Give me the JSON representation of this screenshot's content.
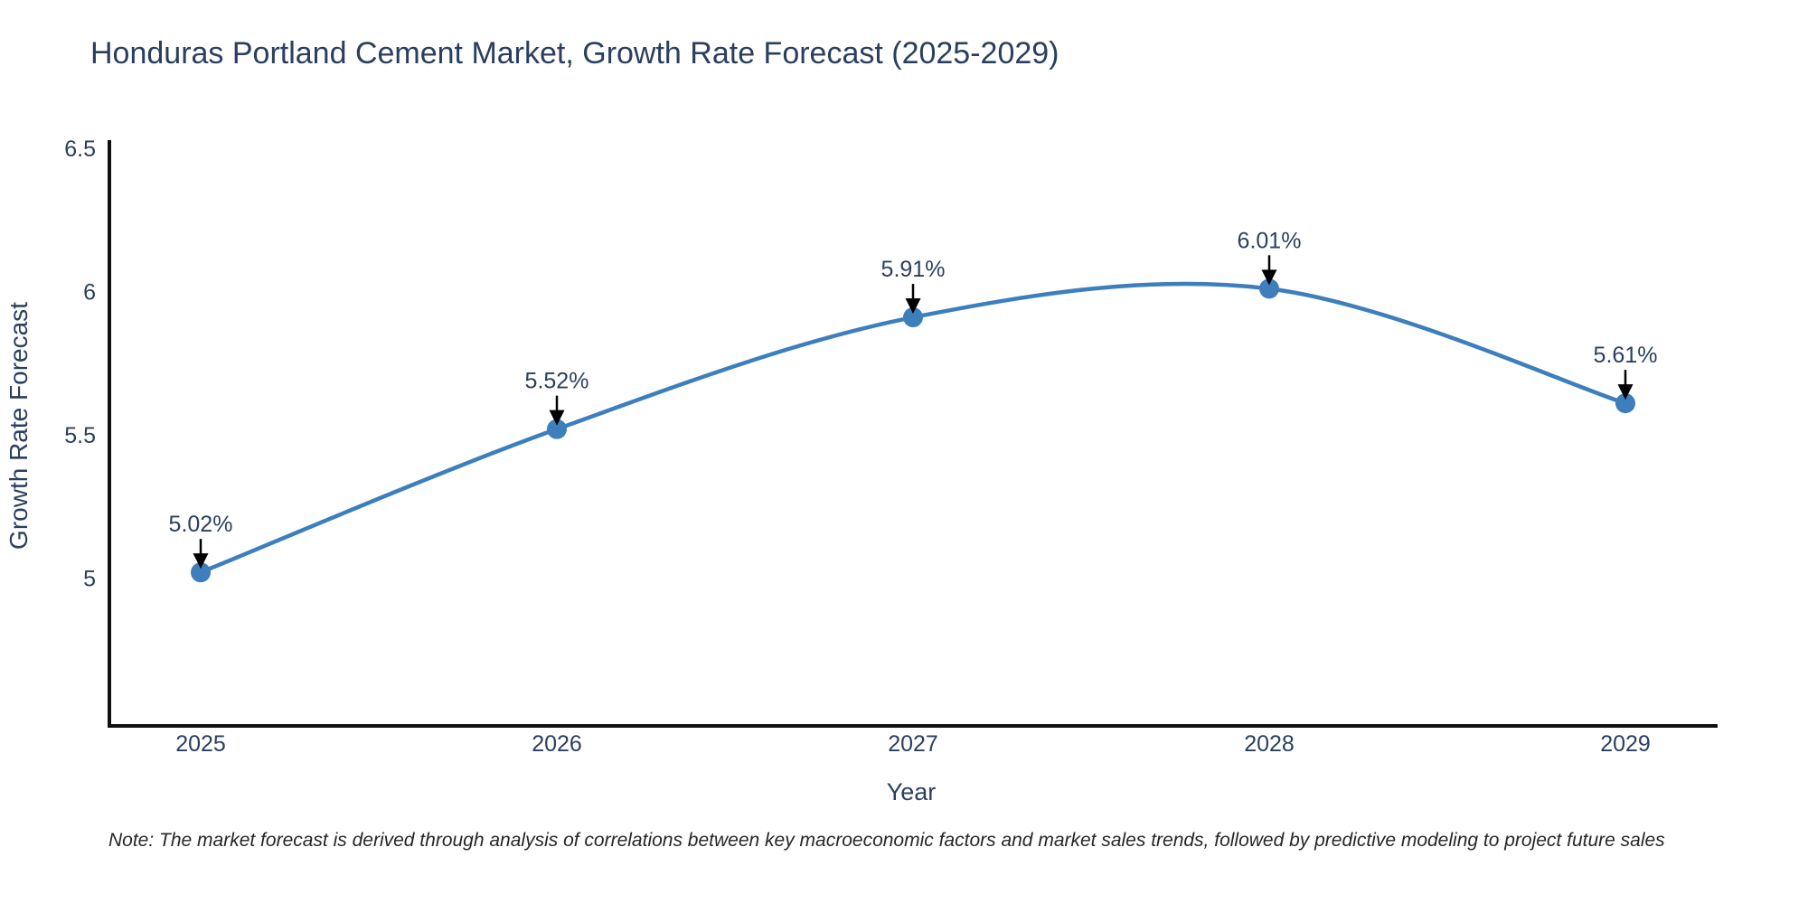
{
  "title": "Honduras Portland Cement Market, Growth Rate Forecast (2025-2029)",
  "footnote": "Note: The market forecast is derived through analysis of correlations between key macroeconomic factors and market sales trends, followed by predictive modeling to project future sales",
  "chart_data": {
    "type": "line",
    "line_shape": "spline",
    "title": "Honduras Portland Cement Market, Growth Rate Forecast (2025-2029)",
    "xlabel": "Year",
    "ylabel": "Growth Rate Forecast",
    "categories": [
      "2025",
      "2026",
      "2027",
      "2028",
      "2029"
    ],
    "values": [
      5.02,
      5.52,
      5.91,
      6.01,
      5.61
    ],
    "point_labels": [
      "5.02%",
      "5.52%",
      "5.91%",
      "6.01%",
      "5.61%"
    ],
    "ytick_values": [
      5,
      5.5,
      6,
      6.5
    ],
    "ytick_labels": [
      "5",
      "5.5",
      "6",
      "6.5"
    ],
    "ylim": [
      4.48,
      6.53
    ],
    "grid": false,
    "legend": "none",
    "annotation_style": "label-with-down-arrow",
    "colors": {
      "line": "#3d7ebd",
      "marker": "#3d7ebd",
      "text": "#2a3f5f",
      "axis_line": "#101010",
      "arrow": "#000000",
      "note": "#262626",
      "background": "#ffffff"
    }
  }
}
